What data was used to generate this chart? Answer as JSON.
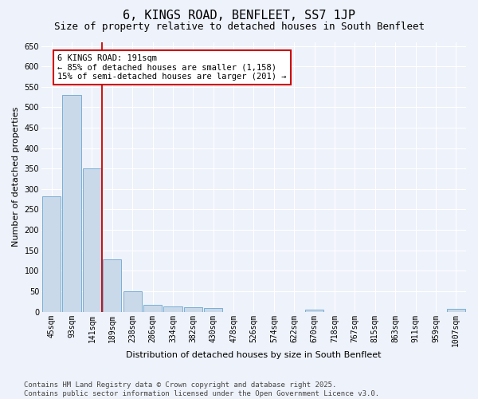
{
  "title": "6, KINGS ROAD, BENFLEET, SS7 1JP",
  "subtitle": "Size of property relative to detached houses in South Benfleet",
  "xlabel": "Distribution of detached houses by size in South Benfleet",
  "ylabel": "Number of detached properties",
  "bar_color": "#c9d9ea",
  "bar_edge_color": "#7bafd4",
  "background_color": "#eef2fa",
  "grid_color": "#ffffff",
  "categories": [
    "45sqm",
    "93sqm",
    "141sqm",
    "189sqm",
    "238sqm",
    "286sqm",
    "334sqm",
    "382sqm",
    "430sqm",
    "478sqm",
    "526sqm",
    "574sqm",
    "622sqm",
    "670sqm",
    "718sqm",
    "767sqm",
    "815sqm",
    "863sqm",
    "911sqm",
    "959sqm",
    "1007sqm"
  ],
  "values": [
    283,
    530,
    350,
    127,
    50,
    17,
    12,
    10,
    8,
    0,
    0,
    0,
    0,
    5,
    0,
    0,
    0,
    0,
    0,
    0,
    6
  ],
  "ylim": [
    0,
    660
  ],
  "yticks": [
    0,
    50,
    100,
    150,
    200,
    250,
    300,
    350,
    400,
    450,
    500,
    550,
    600,
    650
  ],
  "vline_index": 3,
  "vline_color": "#cc0000",
  "annotation_text": "6 KINGS ROAD: 191sqm\n← 85% of detached houses are smaller (1,158)\n15% of semi-detached houses are larger (201) →",
  "footer": "Contains HM Land Registry data © Crown copyright and database right 2025.\nContains public sector information licensed under the Open Government Licence v3.0.",
  "title_fontsize": 11,
  "subtitle_fontsize": 9,
  "axis_label_fontsize": 8,
  "tick_fontsize": 7,
  "annotation_fontsize": 7.5,
  "footer_fontsize": 6.5
}
